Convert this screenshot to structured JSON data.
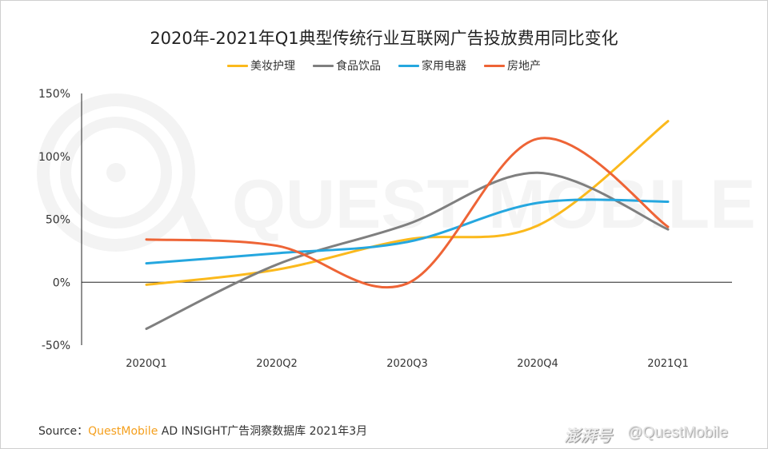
{
  "chart_data": {
    "type": "line",
    "title": "2020年-2021年Q1典型传统行业互联网广告投放费用同比变化",
    "xlabel": "",
    "ylabel": "",
    "categories": [
      "2020Q1",
      "2020Q2",
      "2020Q3",
      "2020Q4",
      "2021Q1"
    ],
    "ylim": [
      -50,
      150
    ],
    "yticks": [
      -50,
      0,
      50,
      100,
      150
    ],
    "ytick_labels": [
      "-50%",
      "0%",
      "50%",
      "100%",
      "150%"
    ],
    "grid": false,
    "legend_position": "top",
    "series": [
      {
        "name": "美妆护理",
        "color": "#FBB91C",
        "values": [
          -2,
          10,
          34,
          45,
          128
        ]
      },
      {
        "name": "食品饮品",
        "color": "#7F7F7F",
        "values": [
          -37,
          14,
          46,
          87,
          42
        ]
      },
      {
        "name": "家用电器",
        "color": "#25A7DF",
        "values": [
          15,
          23,
          32,
          63,
          64
        ]
      },
      {
        "name": "房地产",
        "color": "#EE6436",
        "values": [
          34,
          29,
          -1,
          114,
          44
        ]
      }
    ]
  },
  "footer": {
    "source_label": "Source：",
    "source_brand": "QuestMobile",
    "source_text": " AD INSIGHT广告洞察数据库 2021年3月"
  },
  "watermark": {
    "logo_text": "QUEST MOBILE",
    "platform": "澎湃号",
    "handle": "@QuestMobile"
  }
}
